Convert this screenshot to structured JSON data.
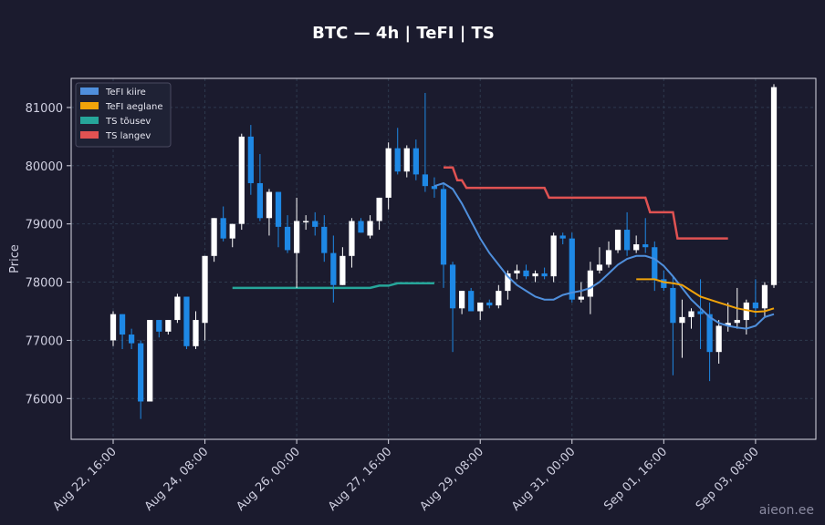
{
  "chart_data": {
    "type": "candlestick",
    "title": "BTC — 4h  |  TeFI  |  TS",
    "ylabel": "Price",
    "xlabel": "",
    "ylim": [
      75300,
      81500
    ],
    "y_ticks": [
      76000,
      77000,
      78000,
      79000,
      80000,
      81000
    ],
    "x_ticks": [
      "Aug 22, 16:00",
      "Aug 24, 08:00",
      "Aug 26, 00:00",
      "Aug 27, 16:00",
      "Aug 29, 08:00",
      "Aug 31, 00:00",
      "Sep 01, 16:00",
      "Sep 03, 08:00"
    ],
    "grid": true,
    "legend_placement": "top-left",
    "colors": {
      "bull": "#ffffff",
      "bear": "#1e88e5",
      "tefi_fast": "#4f8fdc",
      "tefi_slow": "#f0a30a",
      "ts_up": "#26a69a",
      "ts_down": "#e05252",
      "background": "#1b1b2e",
      "grid": "#2e3a4e"
    },
    "legend": [
      {
        "label": "TeFI kiire",
        "color": "#4f8fdc"
      },
      {
        "label": "TeFI aeglane",
        "color": "#f0a30a"
      },
      {
        "label": "TS tõusev",
        "color": "#26a69a"
      },
      {
        "label": "TS langev",
        "color": "#e05252"
      }
    ],
    "candles": [
      [
        77000,
        77500,
        76900,
        77450
      ],
      [
        77450,
        77450,
        76850,
        77100
      ],
      [
        77100,
        77200,
        76850,
        76950
      ],
      [
        76950,
        77000,
        75650,
        75950
      ],
      [
        75950,
        77350,
        75950,
        77350
      ],
      [
        77350,
        77350,
        77050,
        77150
      ],
      [
        77150,
        77350,
        77100,
        77350
      ],
      [
        77350,
        77800,
        77300,
        77750
      ],
      [
        77750,
        77750,
        76850,
        76900
      ],
      [
        76900,
        77500,
        76850,
        77350
      ],
      [
        77300,
        78450,
        77000,
        78450
      ],
      [
        78450,
        79100,
        78350,
        79100
      ],
      [
        79100,
        79300,
        78700,
        78750
      ],
      [
        78750,
        79000,
        78600,
        79000
      ],
      [
        79000,
        80550,
        78900,
        80500
      ],
      [
        80500,
        80700,
        79500,
        79700
      ],
      [
        79700,
        80200,
        79050,
        79100
      ],
      [
        79100,
        79600,
        78800,
        79550
      ],
      [
        79550,
        79550,
        78600,
        78950
      ],
      [
        78950,
        79150,
        78500,
        78550
      ],
      [
        78500,
        79450,
        77900,
        79050
      ],
      [
        79050,
        79150,
        78900,
        79050
      ],
      [
        79050,
        79200,
        78800,
        78950
      ],
      [
        78950,
        79150,
        78350,
        78500
      ],
      [
        78500,
        78800,
        77650,
        77950
      ],
      [
        77950,
        78600,
        77950,
        78450
      ],
      [
        78450,
        79100,
        78250,
        79050
      ],
      [
        79050,
        79100,
        78850,
        78850
      ],
      [
        78800,
        79150,
        78750,
        79050
      ],
      [
        79050,
        79450,
        78900,
        79450
      ],
      [
        79450,
        80400,
        79250,
        80300
      ],
      [
        80300,
        80650,
        79850,
        79900
      ],
      [
        79900,
        80350,
        79800,
        80300
      ],
      [
        80300,
        80450,
        79750,
        79850
      ],
      [
        79850,
        81250,
        79550,
        79650
      ],
      [
        79650,
        79800,
        79450,
        79600
      ],
      [
        79600,
        79700,
        77900,
        78300
      ],
      [
        78300,
        78350,
        76800,
        77550
      ],
      [
        77550,
        77850,
        77450,
        77850
      ],
      [
        77850,
        77900,
        77500,
        77500
      ],
      [
        77500,
        77600,
        77350,
        77650
      ],
      [
        77650,
        77700,
        77550,
        77600
      ],
      [
        77600,
        77950,
        77550,
        77850
      ],
      [
        77850,
        78200,
        77700,
        78150
      ],
      [
        78150,
        78300,
        78050,
        78200
      ],
      [
        78200,
        78300,
        78050,
        78100
      ],
      [
        78100,
        78200,
        78000,
        78150
      ],
      [
        78150,
        78250,
        78050,
        78100
      ],
      [
        78100,
        78850,
        78000,
        78800
      ],
      [
        78800,
        78850,
        78650,
        78750
      ],
      [
        78750,
        78850,
        77650,
        77700
      ],
      [
        77700,
        78000,
        77650,
        77750
      ],
      [
        77750,
        78350,
        77450,
        78200
      ],
      [
        78200,
        78600,
        78150,
        78300
      ],
      [
        78300,
        78700,
        78250,
        78550
      ],
      [
        78550,
        78900,
        78500,
        78900
      ],
      [
        78900,
        79200,
        78450,
        78550
      ],
      [
        78550,
        78800,
        78500,
        78650
      ],
      [
        78650,
        79100,
        78500,
        78600
      ],
      [
        78600,
        78700,
        77850,
        78050
      ],
      [
        78050,
        78200,
        77850,
        77900
      ],
      [
        77900,
        78100,
        76400,
        77300
      ],
      [
        77300,
        77700,
        76700,
        77400
      ],
      [
        77400,
        77550,
        77200,
        77500
      ],
      [
        77500,
        78050,
        76850,
        77450
      ],
      [
        77450,
        77650,
        76300,
        76800
      ],
      [
        76800,
        77350,
        76600,
        77250
      ],
      [
        77250,
        77650,
        77150,
        77300
      ],
      [
        77300,
        77900,
        77200,
        77350
      ],
      [
        77350,
        77700,
        77100,
        77650
      ],
      [
        77650,
        78050,
        77400,
        77550
      ],
      [
        77550,
        78000,
        77400,
        77950
      ],
      [
        77950,
        81400,
        77900,
        81350
      ]
    ],
    "tefi_fast": [
      [
        35,
        79650
      ],
      [
        36,
        79700
      ],
      [
        37,
        79600
      ],
      [
        38,
        79350
      ],
      [
        39,
        79050
      ],
      [
        40,
        78750
      ],
      [
        41,
        78500
      ],
      [
        42,
        78300
      ],
      [
        43,
        78100
      ],
      [
        44,
        77950
      ],
      [
        45,
        77850
      ],
      [
        46,
        77750
      ],
      [
        47,
        77700
      ],
      [
        48,
        77700
      ],
      [
        49,
        77780
      ],
      [
        50,
        77820
      ],
      [
        51,
        77850
      ],
      [
        52,
        77900
      ],
      [
        53,
        78000
      ],
      [
        54,
        78150
      ],
      [
        55,
        78300
      ],
      [
        56,
        78400
      ],
      [
        57,
        78450
      ],
      [
        58,
        78450
      ],
      [
        59,
        78400
      ],
      [
        60,
        78280
      ],
      [
        61,
        78100
      ],
      [
        62,
        77900
      ],
      [
        63,
        77700
      ],
      [
        64,
        77550
      ],
      [
        65,
        77400
      ],
      [
        66,
        77300
      ],
      [
        67,
        77250
      ],
      [
        68,
        77220
      ],
      [
        69,
        77200
      ],
      [
        70,
        77250
      ],
      [
        71,
        77400
      ],
      [
        72,
        77450
      ]
    ],
    "tefi_slow": [
      [
        57,
        78050
      ],
      [
        58,
        78050
      ],
      [
        59,
        78050
      ],
      [
        60,
        78000
      ],
      [
        61,
        77980
      ],
      [
        62,
        77950
      ],
      [
        63,
        77850
      ],
      [
        64,
        77750
      ],
      [
        65,
        77700
      ],
      [
        66,
        77650
      ],
      [
        67,
        77600
      ],
      [
        68,
        77550
      ],
      [
        69,
        77520
      ],
      [
        70,
        77490
      ],
      [
        71,
        77500
      ],
      [
        72,
        77550
      ]
    ],
    "ts_up": [
      [
        13,
        77900
      ],
      [
        14,
        77900
      ],
      [
        15,
        77900
      ],
      [
        16,
        77900
      ],
      [
        17,
        77900
      ],
      [
        18,
        77900
      ],
      [
        19,
        77900
      ],
      [
        20,
        77900
      ],
      [
        21,
        77900
      ],
      [
        22,
        77900
      ],
      [
        23,
        77900
      ],
      [
        24,
        77900
      ],
      [
        25,
        77900
      ],
      [
        26,
        77900
      ],
      [
        27,
        77900
      ],
      [
        28,
        77900
      ],
      [
        29,
        77940
      ],
      [
        30,
        77940
      ],
      [
        31,
        77980
      ],
      [
        32,
        77980
      ],
      [
        33,
        77980
      ],
      [
        34,
        77980
      ],
      [
        35,
        77980
      ]
    ],
    "ts_down": [
      [
        36,
        79970
      ],
      [
        37,
        79970
      ],
      [
        37.5,
        79750
      ],
      [
        38,
        79750
      ],
      [
        38.5,
        79620
      ],
      [
        39,
        79620
      ],
      [
        40,
        79620
      ],
      [
        41,
        79620
      ],
      [
        42,
        79620
      ],
      [
        43,
        79620
      ],
      [
        44,
        79620
      ],
      [
        45,
        79620
      ],
      [
        46,
        79620
      ],
      [
        47,
        79620
      ],
      [
        47.5,
        79450
      ],
      [
        48,
        79450
      ],
      [
        49,
        79450
      ],
      [
        50,
        79450
      ],
      [
        51,
        79450
      ],
      [
        52,
        79450
      ],
      [
        53,
        79450
      ],
      [
        54,
        79450
      ],
      [
        55,
        79450
      ],
      [
        56,
        79450
      ],
      [
        57,
        79450
      ],
      [
        58,
        79450
      ],
      [
        58.5,
        79200
      ],
      [
        59,
        79200
      ],
      [
        60,
        79200
      ],
      [
        61,
        79200
      ],
      [
        61.5,
        78750
      ],
      [
        62,
        78750
      ],
      [
        63,
        78750
      ],
      [
        64,
        78750
      ],
      [
        65,
        78750
      ],
      [
        66,
        78750
      ],
      [
        67,
        78750
      ]
    ],
    "x_tick_candle_index": [
      0,
      10,
      20,
      30,
      40,
      50,
      60,
      70
    ]
  },
  "watermark": "aieon.ee"
}
